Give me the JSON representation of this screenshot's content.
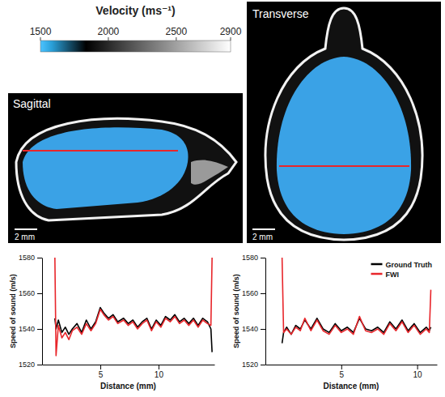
{
  "figure": {
    "colorbar": {
      "title": "Velocity (ms⁻¹)",
      "range": [
        1500,
        2900
      ],
      "ticks": [
        1500,
        2000,
        2500,
        2900
      ]
    },
    "panels": [
      {
        "title": "Sagittal",
        "scale_bar": "2 mm"
      },
      {
        "title": "Transverse",
        "scale_bar": "2 mm"
      }
    ]
  },
  "chart_data": [
    {
      "type": "line",
      "x_label": "Distance (mm)",
      "y_label": "Speed of sound (m/s)",
      "xlim": [
        0,
        14.8
      ],
      "ylim": [
        1520,
        1580
      ],
      "xticks": [
        5,
        10
      ],
      "yticks": [
        1520,
        1540,
        1560,
        1580
      ],
      "x": [
        1.1,
        1.2,
        1.4,
        1.7,
        2.0,
        2.3,
        2.6,
        3.0,
        3.4,
        3.8,
        4.2,
        4.6,
        5.0,
        5.3,
        5.7,
        6.1,
        6.5,
        7.0,
        7.4,
        7.8,
        8.2,
        8.6,
        9.0,
        9.4,
        9.8,
        10.2,
        10.6,
        11.0,
        11.4,
        11.8,
        12.2,
        12.6,
        13.0,
        13.4,
        13.8,
        14.2,
        14.5,
        14.6
      ],
      "series": [
        {
          "color": "#000000",
          "values": [
            1546,
            1540,
            1545,
            1538,
            1541,
            1537,
            1540,
            1543,
            1538,
            1545,
            1540,
            1544,
            1552,
            1549,
            1546,
            1548,
            1544,
            1546,
            1543,
            1545,
            1541,
            1544,
            1546,
            1540,
            1545,
            1542,
            1547,
            1545,
            1548,
            1544,
            1546,
            1543,
            1546,
            1542,
            1546,
            1544,
            1540,
            1527
          ]
        },
        {
          "color": "#e8262b",
          "values": [
            1580,
            1525,
            1542,
            1535,
            1538,
            1534,
            1539,
            1541,
            1537,
            1543,
            1539,
            1543,
            1551,
            1548,
            1545,
            1547,
            1543,
            1545,
            1542,
            1544,
            1540,
            1543,
            1545,
            1539,
            1544,
            1541,
            1546,
            1544,
            1547,
            1543,
            1545,
            1542,
            1545,
            1541,
            1545,
            1543,
            1542,
            1580
          ]
        }
      ]
    },
    {
      "type": "line",
      "x_label": "Distance (mm)",
      "y_label": "Speed of sound (m/s)",
      "xlim": [
        0,
        11.3
      ],
      "ylim": [
        1520,
        1580
      ],
      "xticks": [
        5,
        10
      ],
      "yticks": [
        1520,
        1540,
        1560,
        1580
      ],
      "legend": "upper right",
      "x": [
        1.1,
        1.2,
        1.4,
        1.7,
        2.0,
        2.3,
        2.6,
        3.0,
        3.4,
        3.8,
        4.2,
        4.6,
        5.0,
        5.4,
        5.8,
        6.2,
        6.6,
        7.0,
        7.4,
        7.8,
        8.2,
        8.6,
        9.0,
        9.4,
        9.8,
        10.2,
        10.6,
        10.8,
        10.9
      ],
      "series": [
        {
          "name": "Ground Truth",
          "color": "#000000",
          "values": [
            1532,
            1538,
            1541,
            1537,
            1542,
            1540,
            1545,
            1540,
            1546,
            1540,
            1538,
            1543,
            1539,
            1541,
            1538,
            1546,
            1540,
            1539,
            1541,
            1538,
            1544,
            1540,
            1545,
            1539,
            1543,
            1538,
            1541,
            1539,
            1541
          ]
        },
        {
          "name": "FWI",
          "color": "#e8262b",
          "values": [
            1580,
            1538,
            1540,
            1537,
            1541,
            1539,
            1546,
            1539,
            1545,
            1539,
            1537,
            1542,
            1538,
            1540,
            1537,
            1547,
            1539,
            1538,
            1540,
            1537,
            1543,
            1539,
            1544,
            1538,
            1542,
            1537,
            1540,
            1538,
            1562
          ]
        }
      ]
    }
  ]
}
